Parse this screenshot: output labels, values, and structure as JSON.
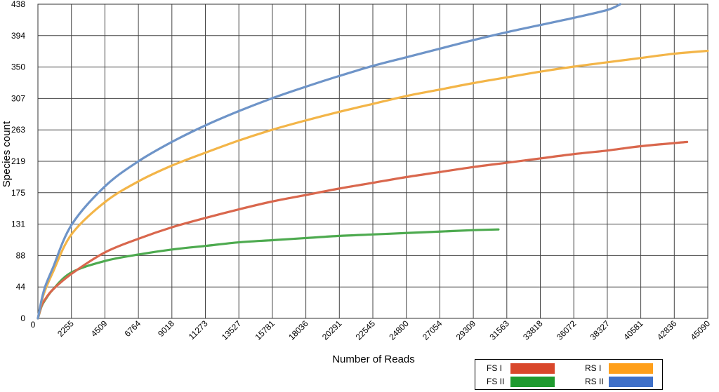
{
  "chart_data": {
    "type": "line",
    "title": "",
    "xlabel": "Number of Reads",
    "ylabel": "Species count",
    "xlim": [
      0,
      45090
    ],
    "ylim": [
      0,
      438
    ],
    "x_ticks": [
      "0",
      "2255",
      "4509",
      "6764",
      "9018",
      "11273",
      "13527",
      "15781",
      "18036",
      "20291",
      "22545",
      "24800",
      "27054",
      "29309",
      "31563",
      "33818",
      "36072",
      "38327",
      "40581",
      "42836",
      "45090"
    ],
    "y_ticks": [
      "0",
      "44",
      "88",
      "131",
      "175",
      "219",
      "263",
      "307",
      "350",
      "394",
      "438"
    ],
    "grid": true,
    "legend_position": "bottom-right",
    "series": [
      {
        "name": "FS I",
        "color": "#d9472b",
        "line_color": "#d9674d",
        "x": [
          0,
          250,
          500,
          1000,
          2255,
          4509,
          6764,
          9018,
          11273,
          13527,
          15781,
          18036,
          20291,
          22545,
          24800,
          27054,
          29309,
          31563,
          33818,
          36072,
          38327,
          40581,
          43700
        ],
        "y": [
          0,
          18,
          27,
          40,
          62,
          92,
          111,
          127,
          140,
          152,
          163,
          172,
          181,
          189,
          197,
          204,
          211,
          217,
          223,
          229,
          234,
          240,
          246
        ]
      },
      {
        "name": "FS II",
        "color": "#1f9a2f",
        "line_color": "#4daa4f",
        "x": [
          0,
          250,
          500,
          1000,
          2255,
          4509,
          6764,
          9018,
          11273,
          13527,
          15781,
          18036,
          20291,
          22545,
          24800,
          27054,
          29309,
          31000
        ],
        "y": [
          0,
          17,
          26,
          40,
          64,
          80,
          89,
          96,
          101,
          106,
          109,
          112,
          115,
          117,
          119,
          121,
          123,
          124
        ]
      },
      {
        "name": "RS I",
        "color": "#ff9f1a",
        "line_color": "#f3b548",
        "x": [
          0,
          250,
          500,
          1000,
          2255,
          4509,
          6764,
          9018,
          11273,
          13527,
          15781,
          18036,
          20291,
          22545,
          24800,
          27054,
          29309,
          31563,
          33818,
          36072,
          38327,
          40581,
          42836,
          45090
        ],
        "y": [
          0,
          24,
          40,
          64,
          117,
          162,
          191,
          213,
          231,
          248,
          263,
          276,
          288,
          299,
          310,
          319,
          328,
          336,
          344,
          351,
          357,
          363,
          369,
          373
        ]
      },
      {
        "name": "RS II",
        "color": "#3f70c8",
        "line_color": "#6e94c8",
        "x": [
          0,
          250,
          500,
          1000,
          2255,
          4509,
          6764,
          9018,
          11273,
          13527,
          15781,
          18036,
          20291,
          22545,
          24800,
          27054,
          29309,
          31563,
          33818,
          36072,
          38327,
          39200
        ],
        "y": [
          0,
          26,
          45,
          70,
          130,
          184,
          219,
          246,
          269,
          289,
          307,
          323,
          338,
          352,
          364,
          376,
          388,
          399,
          409,
          419,
          430,
          438
        ]
      }
    ]
  }
}
